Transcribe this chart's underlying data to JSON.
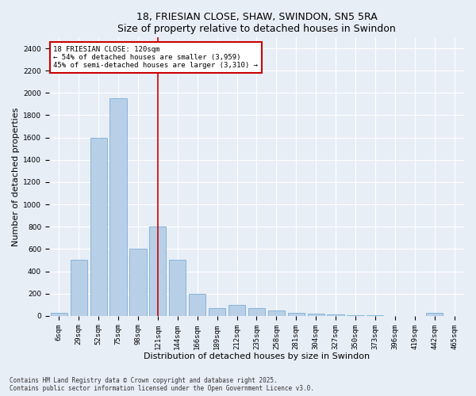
{
  "title1": "18, FRIESIAN CLOSE, SHAW, SWINDON, SN5 5RA",
  "title2": "Size of property relative to detached houses in Swindon",
  "xlabel": "Distribution of detached houses by size in Swindon",
  "ylabel": "Number of detached properties",
  "categories": [
    "6sqm",
    "29sqm",
    "52sqm",
    "75sqm",
    "98sqm",
    "121sqm",
    "144sqm",
    "166sqm",
    "189sqm",
    "212sqm",
    "235sqm",
    "258sqm",
    "281sqm",
    "304sqm",
    "327sqm",
    "350sqm",
    "373sqm",
    "396sqm",
    "419sqm",
    "442sqm",
    "465sqm"
  ],
  "values": [
    30,
    500,
    1600,
    1950,
    600,
    800,
    500,
    200,
    70,
    100,
    70,
    50,
    30,
    20,
    10,
    5,
    5,
    2,
    0,
    30,
    2
  ],
  "bar_color": "#b8cfe8",
  "bar_edge_color": "#7aafd4",
  "red_line_x": 5,
  "ylim": [
    0,
    2500
  ],
  "yticks": [
    0,
    200,
    400,
    600,
    800,
    1000,
    1200,
    1400,
    1600,
    1800,
    2000,
    2200,
    2400
  ],
  "annotation_text": "18 FRIESIAN CLOSE: 120sqm\n← 54% of detached houses are smaller (3,959)\n45% of semi-detached houses are larger (3,310) →",
  "annotation_box_color": "#ffffff",
  "annotation_box_edge": "#cc0000",
  "footnote": "Contains HM Land Registry data © Crown copyright and database right 2025.\nContains public sector information licensed under the Open Government Licence v3.0.",
  "bg_color": "#e8eef6",
  "plot_bg_color": "#e8eef6",
  "grid_color": "#ffffff",
  "title_fontsize": 9,
  "tick_fontsize": 6.5,
  "label_fontsize": 8,
  "annot_fontsize": 6.5,
  "footnote_fontsize": 5.5
}
